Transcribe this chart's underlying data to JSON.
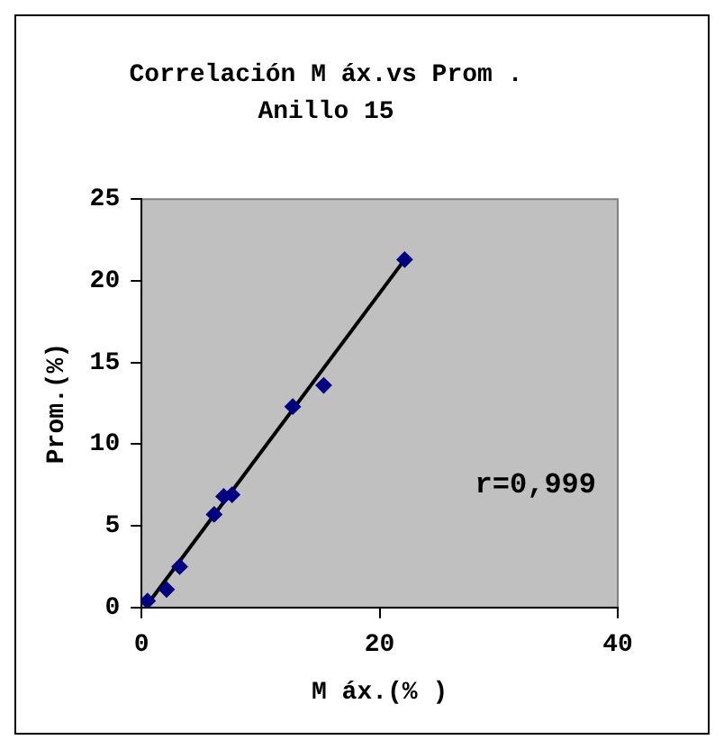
{
  "chart_data": {
    "type": "scatter",
    "title": "Correlación M áx.vs Prom .",
    "subtitle": "Anillo 15",
    "xlabel": "M áx.(% )",
    "ylabel": "Prom.(%)",
    "annotations": [
      "r=0,999"
    ],
    "xlim": [
      0,
      40
    ],
    "xticks": [
      0,
      20,
      40
    ],
    "ylim": [
      0,
      25
    ],
    "yticks": [
      0,
      5,
      10,
      15,
      20,
      25
    ],
    "grid": false,
    "legend": false,
    "marker": "diamond",
    "series": [
      {
        "color": "#000080",
        "x": [
          0.5,
          2.1,
          3.2,
          6.1,
          6.9,
          7.6,
          12.7,
          15.3,
          22.1
        ],
        "values": [
          0.4,
          1.1,
          2.5,
          5.7,
          6.8,
          6.9,
          12.3,
          13.6,
          21.3
        ]
      },
      {
        "type": "line",
        "color": "#000000",
        "x": [
          0.4,
          22.1
        ],
        "values": [
          0.1,
          21.3
        ],
        "marker": "none",
        "line_style": "solid"
      }
    ]
  }
}
